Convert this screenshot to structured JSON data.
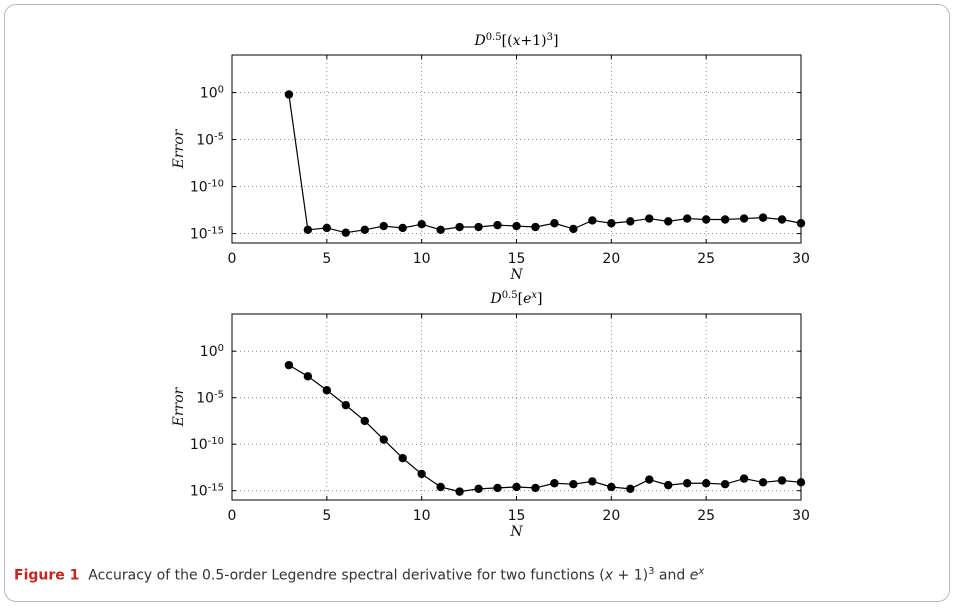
{
  "caption": {
    "figure_label": "Figure 1",
    "text_before": "Accuracy of the 0.5-order Legendre spectral derivative for two functions (",
    "var_x": "x",
    "text_plus": " + 1)",
    "exp_3": "3",
    "text_and": " and ",
    "var_e": "e",
    "exp_x": "x"
  },
  "chart_data": [
    {
      "type": "line",
      "title": "D^{0.5}[(x+1)^3]",
      "xlabel": "N",
      "ylabel": "Error",
      "xlim": [
        0,
        30
      ],
      "ylim_log10": [
        -16,
        4
      ],
      "y_scale": "log",
      "grid": true,
      "xticks": [
        0,
        5,
        10,
        15,
        20,
        25,
        30
      ],
      "yticks_exp": [
        0,
        -5,
        -10,
        -15
      ],
      "x": [
        3,
        4,
        5,
        6,
        7,
        8,
        9,
        10,
        11,
        12,
        13,
        14,
        15,
        16,
        17,
        18,
        19,
        20,
        21,
        22,
        23,
        24,
        25,
        26,
        27,
        28,
        29,
        30
      ],
      "log10_values": [
        -0.2,
        -14.6,
        -14.4,
        -14.9,
        -14.6,
        -14.2,
        -14.4,
        -14.0,
        -14.6,
        -14.3,
        -14.3,
        -14.1,
        -14.2,
        -14.3,
        -13.9,
        -14.5,
        -13.6,
        -13.9,
        -13.7,
        -13.4,
        -13.7,
        -13.4,
        -13.5,
        -13.5,
        -13.4,
        -13.3,
        -13.5,
        -13.9
      ]
    },
    {
      "type": "line",
      "title": "D^{0.5}[e^x]",
      "xlabel": "N",
      "ylabel": "Error",
      "xlim": [
        0,
        30
      ],
      "ylim_log10": [
        -16,
        4
      ],
      "y_scale": "log",
      "grid": true,
      "xticks": [
        0,
        5,
        10,
        15,
        20,
        25,
        30
      ],
      "yticks_exp": [
        0,
        -5,
        -10,
        -15
      ],
      "x": [
        3,
        4,
        5,
        6,
        7,
        8,
        9,
        10,
        11,
        12,
        13,
        14,
        15,
        16,
        17,
        18,
        19,
        20,
        21,
        22,
        23,
        24,
        25,
        26,
        27,
        28,
        29,
        30
      ],
      "log10_values": [
        -1.5,
        -2.7,
        -4.2,
        -5.8,
        -7.5,
        -9.5,
        -11.5,
        -13.2,
        -14.6,
        -15.1,
        -14.8,
        -14.7,
        -14.6,
        -14.7,
        -14.2,
        -14.3,
        -14.0,
        -14.6,
        -14.8,
        -13.8,
        -14.4,
        -14.2,
        -14.2,
        -14.3,
        -13.7,
        -14.1,
        -13.9,
        -14.1
      ]
    }
  ]
}
